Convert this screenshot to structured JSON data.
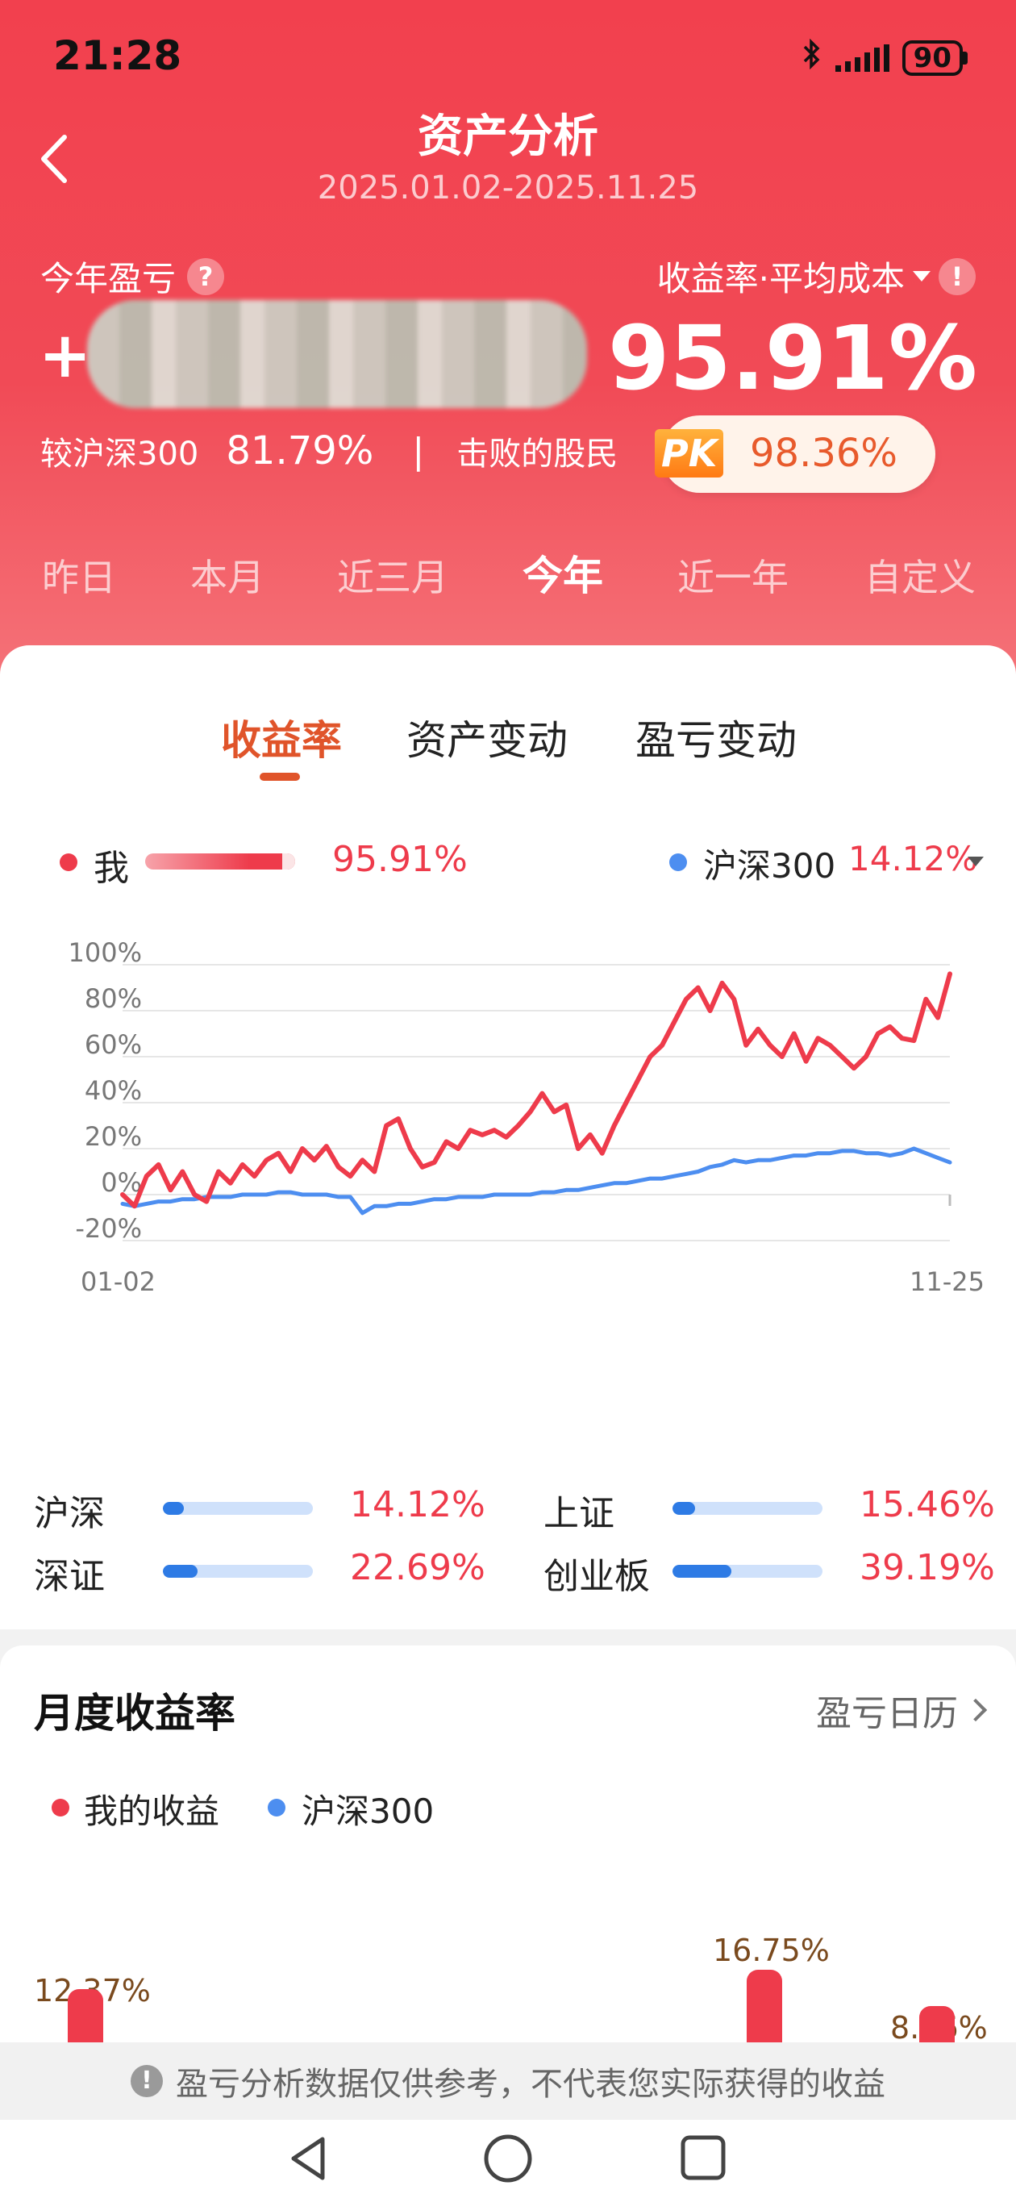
{
  "status": {
    "time": "21:28",
    "battery": "90"
  },
  "header": {
    "title": "资产分析",
    "date_range": "2025.01.02-2025.11.25",
    "pnl_label": "今年盈亏",
    "pnl_help": "?",
    "pnl_sign": "+",
    "rate_label": "收益率·平均成本",
    "rate_help": "!",
    "rate_value": "95.91%",
    "vs_label": "较沪深300",
    "vs_value": "81.79%",
    "separator": "|",
    "beat_label": "击败的股民",
    "pk_badge": "PK",
    "beat_value": "98.36%"
  },
  "period_tabs": [
    "昨日",
    "本月",
    "近三月",
    "今年",
    "近一年",
    "自定义"
  ],
  "active_period": "今年",
  "chart_tabs": [
    "收益率",
    "资产变动",
    "盈亏变动"
  ],
  "active_chart_tab": "收益率",
  "legend": {
    "me_label": "我",
    "me_value": "95.91%",
    "index_label": "沪深300",
    "index_value": "14.12%"
  },
  "colors": {
    "me": "#ee3b4b",
    "index": "#4d8ef0",
    "accent": "#e0542a",
    "header": "#f2404e"
  },
  "chart_data": {
    "type": "line",
    "yticks": [
      "100%",
      "80%",
      "60%",
      "40%",
      "20%",
      "0%",
      "-20%"
    ],
    "ylim": [
      -20,
      100
    ],
    "x_start_label": "01-02",
    "x_end_label": "11-25",
    "series": [
      {
        "name": "我",
        "values": [
          0,
          -5,
          8,
          13,
          2,
          10,
          0,
          -3,
          10,
          5,
          13,
          8,
          15,
          18,
          10,
          20,
          15,
          21,
          12,
          8,
          15,
          10,
          30,
          33,
          20,
          12,
          14,
          23,
          20,
          28,
          26,
          28,
          25,
          30,
          36,
          44,
          36,
          39,
          20,
          26,
          18,
          30,
          40,
          50,
          60,
          65,
          75,
          85,
          90,
          80,
          92,
          85,
          65,
          72,
          65,
          60,
          70,
          58,
          68,
          65,
          60,
          55,
          60,
          70,
          73,
          68,
          67,
          85,
          77,
          96
        ]
      },
      {
        "name": "沪深300",
        "values": [
          -4,
          -5,
          -4,
          -3,
          -3,
          -2,
          -2,
          -1,
          -1,
          -1,
          0,
          0,
          0,
          1,
          1,
          0,
          0,
          0,
          -1,
          -1,
          -8,
          -5,
          -5,
          -4,
          -4,
          -3,
          -2,
          -2,
          -1,
          -1,
          -1,
          0,
          0,
          0,
          0,
          1,
          1,
          2,
          2,
          3,
          4,
          5,
          5,
          6,
          7,
          7,
          8,
          9,
          10,
          12,
          13,
          15,
          14,
          15,
          15,
          16,
          17,
          17,
          18,
          18,
          19,
          19,
          18,
          18,
          17,
          18,
          20,
          18,
          16,
          14
        ]
      }
    ]
  },
  "indices": [
    {
      "name": "沪深",
      "value": "14.12%",
      "fill": 0.14
    },
    {
      "name": "上证",
      "value": "15.46%",
      "fill": 0.15
    },
    {
      "name": "深证",
      "value": "22.69%",
      "fill": 0.23
    },
    {
      "name": "创业板",
      "value": "39.19%",
      "fill": 0.39
    }
  ],
  "monthly": {
    "title": "月度收益率",
    "calendar_link": "盈亏日历",
    "legend_me": "我的收益",
    "legend_index": "沪深300",
    "bars": [
      {
        "label": "12.37%",
        "value": 12.37
      },
      {
        "label": "16.75%",
        "value": 16.75
      },
      {
        "label": "8.46%",
        "value": 8.46
      }
    ]
  },
  "disclaimer": "盈亏分析数据仅供参考，不代表您实际获得的收益"
}
